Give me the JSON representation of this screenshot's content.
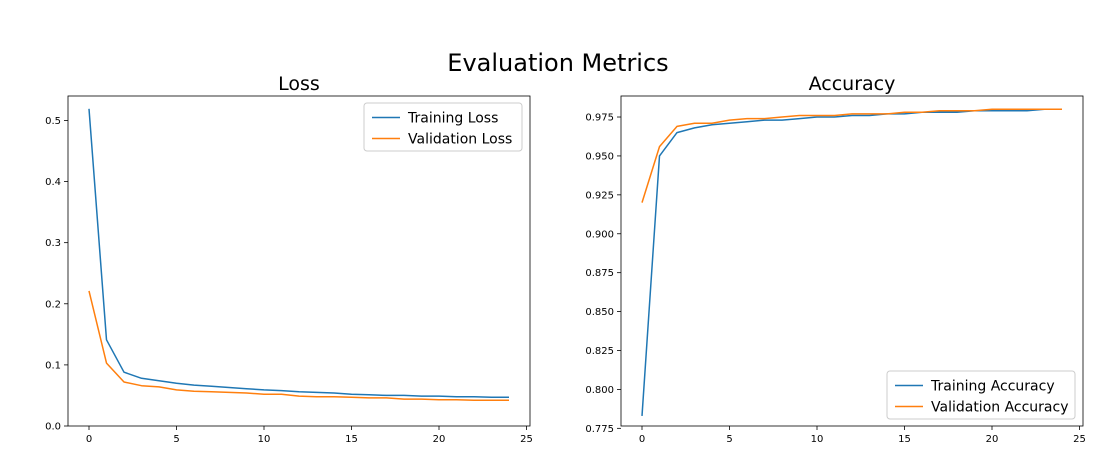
{
  "figure": {
    "title": "Evaluation Metrics"
  },
  "chart_data": [
    {
      "type": "line",
      "title": "Loss",
      "xlabel": "",
      "ylabel": "",
      "xlim": [
        -1.2,
        25.2
      ],
      "ylim": [
        0.0,
        0.54
      ],
      "xticks": [
        0,
        5,
        10,
        15,
        20,
        25
      ],
      "yticks": [
        0.0,
        0.1,
        0.2,
        0.3,
        0.4,
        0.5
      ],
      "ytick_labels": [
        "0.0",
        "0.1",
        "0.2",
        "0.3",
        "0.4",
        "0.5"
      ],
      "grid": false,
      "legend_position": "top-right",
      "x": [
        0,
        1,
        2,
        3,
        4,
        5,
        6,
        7,
        8,
        9,
        10,
        11,
        12,
        13,
        14,
        15,
        16,
        17,
        18,
        19,
        20,
        21,
        22,
        23,
        24
      ],
      "series": [
        {
          "name": "Training Loss",
          "color": "#1f77b4",
          "values": [
            0.519,
            0.141,
            0.088,
            0.078,
            0.074,
            0.07,
            0.067,
            0.065,
            0.063,
            0.061,
            0.059,
            0.058,
            0.056,
            0.055,
            0.054,
            0.052,
            0.051,
            0.05,
            0.05,
            0.049,
            0.049,
            0.048,
            0.048,
            0.047,
            0.047
          ]
        },
        {
          "name": "Validation Loss",
          "color": "#ff7f0e",
          "values": [
            0.221,
            0.103,
            0.072,
            0.066,
            0.064,
            0.059,
            0.057,
            0.056,
            0.055,
            0.054,
            0.052,
            0.052,
            0.049,
            0.048,
            0.048,
            0.047,
            0.046,
            0.046,
            0.044,
            0.044,
            0.043,
            0.043,
            0.042,
            0.042,
            0.042
          ]
        }
      ]
    },
    {
      "type": "line",
      "title": "Accuracy",
      "xlabel": "",
      "ylabel": "",
      "xlim": [
        -1.2,
        25.2
      ],
      "ylim": [
        0.7765,
        0.9885
      ],
      "xticks": [
        0,
        5,
        10,
        15,
        20,
        25
      ],
      "yticks": [
        0.775,
        0.8,
        0.825,
        0.85,
        0.875,
        0.9,
        0.925,
        0.95,
        0.975
      ],
      "ytick_labels": [
        "0.775",
        "0.800",
        "0.825",
        "0.850",
        "0.875",
        "0.900",
        "0.925",
        "0.950",
        "0.975"
      ],
      "grid": false,
      "legend_position": "bottom-right",
      "x": [
        0,
        1,
        2,
        3,
        4,
        5,
        6,
        7,
        8,
        9,
        10,
        11,
        12,
        13,
        14,
        15,
        16,
        17,
        18,
        19,
        20,
        21,
        22,
        23,
        24
      ],
      "series": [
        {
          "name": "Training Accuracy",
          "color": "#1f77b4",
          "values": [
            0.783,
            0.95,
            0.965,
            0.968,
            0.97,
            0.971,
            0.972,
            0.973,
            0.973,
            0.974,
            0.975,
            0.975,
            0.976,
            0.976,
            0.977,
            0.977,
            0.978,
            0.978,
            0.978,
            0.979,
            0.979,
            0.979,
            0.979,
            0.98,
            0.98
          ]
        },
        {
          "name": "Validation Accuracy",
          "color": "#ff7f0e",
          "values": [
            0.92,
            0.956,
            0.969,
            0.971,
            0.971,
            0.973,
            0.974,
            0.974,
            0.975,
            0.976,
            0.976,
            0.976,
            0.977,
            0.977,
            0.977,
            0.978,
            0.978,
            0.979,
            0.979,
            0.979,
            0.98,
            0.98,
            0.98,
            0.98,
            0.98
          ]
        }
      ]
    }
  ]
}
